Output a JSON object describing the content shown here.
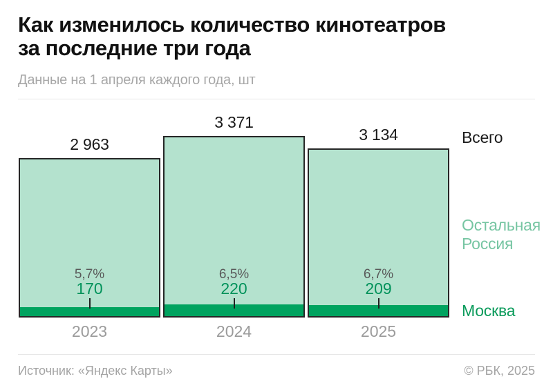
{
  "header": {
    "title_line1": "Как изменилось количество кинотеатров",
    "title_line2": "за последние три года",
    "subtitle": "Данные на 1 апреля каждого года, шт"
  },
  "chart_data": {
    "type": "bar",
    "stacked": true,
    "title": "Как изменилось количество кинотеатров за последние три года",
    "subtitle": "Данные на 1 апреля каждого года, шт",
    "unit": "шт",
    "categories": [
      "2023",
      "2024",
      "2025"
    ],
    "totals": [
      2963,
      3371,
      3134
    ],
    "series": [
      {
        "name": "Москва",
        "values": [
          170,
          220,
          209
        ]
      },
      {
        "name": "Остальная Россия",
        "values": [
          2793,
          3151,
          2925
        ]
      }
    ],
    "bars": [
      {
        "year": "2023",
        "total": 2963,
        "total_label": "2 963",
        "moscow": 170,
        "moscow_label": "170",
        "moscow_pct": "5,7%"
      },
      {
        "year": "2024",
        "total": 3371,
        "total_label": "3 371",
        "moscow": 220,
        "moscow_label": "220",
        "moscow_pct": "6,5%"
      },
      {
        "year": "2025",
        "total": 3134,
        "total_label": "3 134",
        "moscow": 209,
        "moscow_label": "209",
        "moscow_pct": "6,7%"
      }
    ],
    "legend": {
      "total": "Всего",
      "rest": "Остальная Россия",
      "moscow": "Москва"
    },
    "colors": {
      "rest_fill": "#b4e2ce",
      "moscow_fill": "#00a35f",
      "bar_border": "#262626",
      "moscow_value_text": "#00925a",
      "rest_legend_text": "#76c5a2",
      "moscow_legend_text": "#0b9b5b",
      "pct_text": "#595959"
    },
    "ylim": [
      0,
      3371
    ],
    "grid": false,
    "legend_position": "right"
  },
  "footer": {
    "source": "Источник: «Яндекс Карты»",
    "copyright": "© РБК, 2025"
  }
}
